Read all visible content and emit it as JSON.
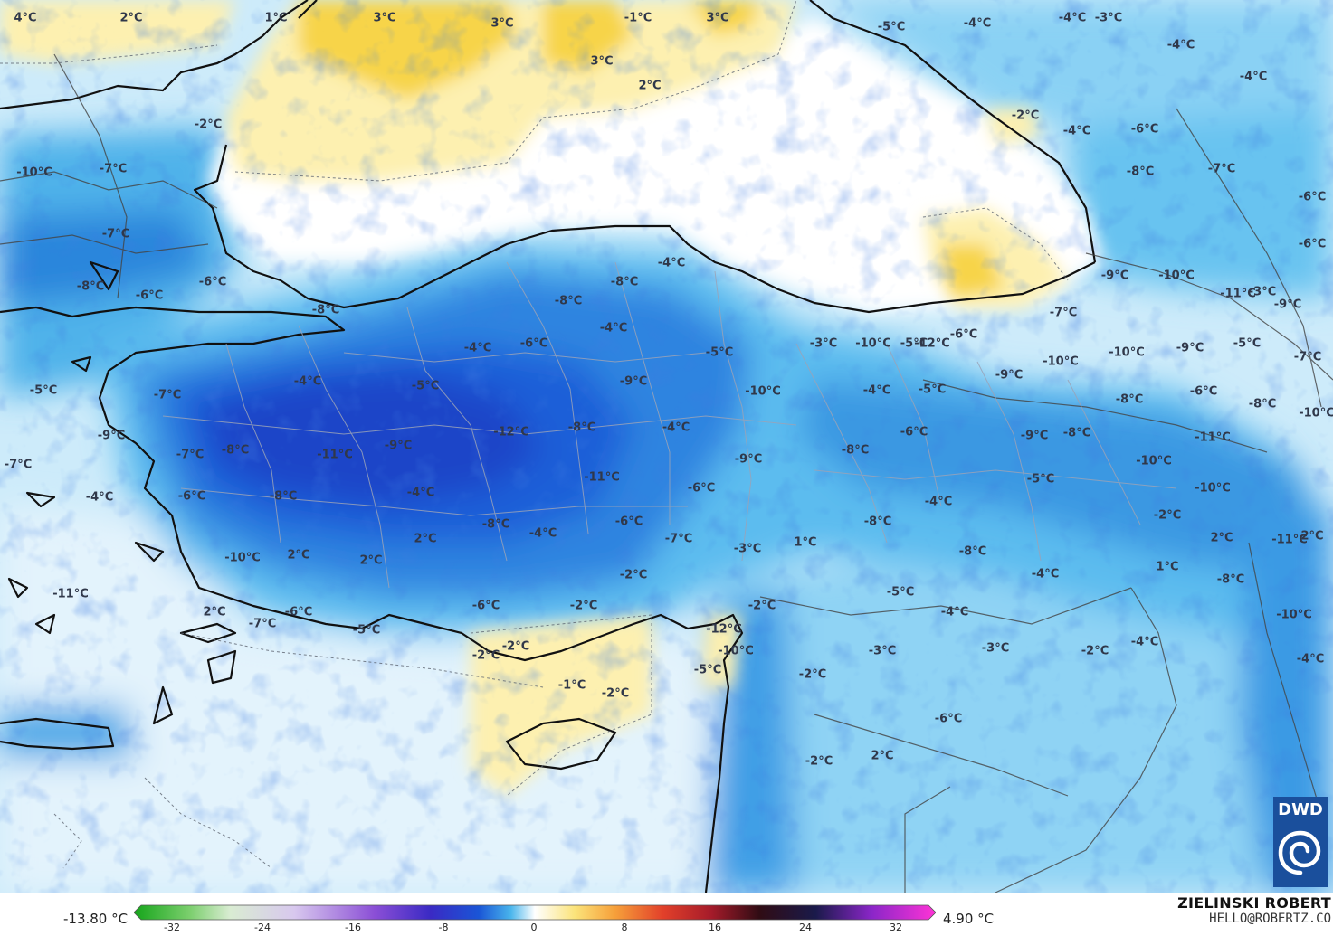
{
  "legend": {
    "min_label": "-13.80 °C",
    "max_label": "4.90 °C",
    "ticks": [
      "-32",
      "-24",
      "-16",
      "-8",
      "0",
      "8",
      "16",
      "24",
      "32"
    ]
  },
  "credit": {
    "author": "ZIELINSKI ROBERT",
    "email": "HELLO@ROBERTZ.CO"
  },
  "logo": {
    "text": "DWD",
    "icon": "dwd-swirl-icon"
  },
  "colors": {
    "warm_yellow": "#f7d44a",
    "pale_yellow": "#fdf0b0",
    "zero": "#ffffff",
    "light_blue": "#c9ebfb",
    "mid_blue": "#55b8ec",
    "deep_blue": "#1a66d6",
    "darkest_blue": "#1530b8"
  },
  "labels": [
    {
      "t": "4°C"
    },
    {
      "t": "2°C"
    },
    {
      "t": "1°C"
    },
    {
      "t": "3°C"
    },
    {
      "t": "3°C"
    },
    {
      "t": "-1°C"
    },
    {
      "t": "3°C"
    },
    {
      "t": "3°C"
    },
    {
      "t": "2°C"
    },
    {
      "t": "-5°C"
    },
    {
      "t": "-4°C"
    },
    {
      "t": "-4°C"
    },
    {
      "t": "-3°C"
    },
    {
      "t": "-4°C"
    },
    {
      "t": "-4°C"
    },
    {
      "t": "-2°C"
    },
    {
      "t": "-2°C"
    },
    {
      "t": "-4°C"
    },
    {
      "t": "-6°C"
    },
    {
      "t": "-10°C"
    },
    {
      "t": "-7°C"
    },
    {
      "t": "-7°C"
    },
    {
      "t": "-8°C"
    },
    {
      "t": "-6°C"
    },
    {
      "t": "-6°C"
    },
    {
      "t": "-6°C"
    },
    {
      "t": "-6°C"
    },
    {
      "t": "-8°C"
    },
    {
      "t": "-7°C"
    },
    {
      "t": "-8°C"
    },
    {
      "t": "-8°C"
    },
    {
      "t": "-8°C"
    },
    {
      "t": "-4°C"
    },
    {
      "t": "-7°C"
    },
    {
      "t": "-5°C"
    },
    {
      "t": "-6°C"
    },
    {
      "t": "-3°C"
    },
    {
      "t": "-9°C"
    },
    {
      "t": "-10°C"
    },
    {
      "t": "-11°C"
    },
    {
      "t": "-9°C"
    },
    {
      "t": "-5°C"
    },
    {
      "t": "-7°C"
    },
    {
      "t": "-7°C"
    },
    {
      "t": "-4°C"
    },
    {
      "t": "-5°C"
    },
    {
      "t": "-4°C"
    },
    {
      "t": "-6°C"
    },
    {
      "t": "-4°C"
    },
    {
      "t": "-5°C"
    },
    {
      "t": "-3°C"
    },
    {
      "t": "-10°C"
    },
    {
      "t": "-12°C"
    },
    {
      "t": "-9°C"
    },
    {
      "t": "-10°C"
    },
    {
      "t": "-10°C"
    },
    {
      "t": "-9°C"
    },
    {
      "t": "-6°C"
    },
    {
      "t": "-8°C"
    },
    {
      "t": "-10°C"
    },
    {
      "t": "-5°C"
    },
    {
      "t": "-9°C"
    },
    {
      "t": "-7°C"
    },
    {
      "t": "-4°C"
    },
    {
      "t": "-7°C"
    },
    {
      "t": "-8°C"
    },
    {
      "t": "-11°C"
    },
    {
      "t": "-9°C"
    },
    {
      "t": "-12°C"
    },
    {
      "t": "-8°C"
    },
    {
      "t": "-9°C"
    },
    {
      "t": "-4°C"
    },
    {
      "t": "-10°C"
    },
    {
      "t": "-8°C"
    },
    {
      "t": "-6°C"
    },
    {
      "t": "-9°C"
    },
    {
      "t": "-8°C"
    },
    {
      "t": "-8°C"
    },
    {
      "t": "-10°C"
    },
    {
      "t": "-11°C"
    },
    {
      "t": "-5°C"
    },
    {
      "t": "-10°C"
    },
    {
      "t": "-6°C"
    },
    {
      "t": "-8°C"
    },
    {
      "t": "-4°C"
    },
    {
      "t": "-8°C"
    },
    {
      "t": "-4°C"
    },
    {
      "t": "-11°C"
    },
    {
      "t": "-6°C"
    },
    {
      "t": "-6°C"
    },
    {
      "t": "-9°C"
    },
    {
      "t": "-4°C"
    },
    {
      "t": "-5°C"
    },
    {
      "t": "-4°C"
    },
    {
      "t": "-8°C"
    },
    {
      "t": "-8°C"
    },
    {
      "t": "-4°C"
    },
    {
      "t": "-2°C"
    },
    {
      "t": "2°C"
    },
    {
      "t": "1°C"
    },
    {
      "t": "-8°C"
    },
    {
      "t": "-11°C"
    },
    {
      "t": "2°C"
    },
    {
      "t": "-10°C"
    },
    {
      "t": "2°C"
    },
    {
      "t": "2°C"
    },
    {
      "t": "2°C"
    },
    {
      "t": "-7°C"
    },
    {
      "t": "1°C"
    },
    {
      "t": "-3°C"
    },
    {
      "t": "-5°C"
    },
    {
      "t": "-4°C"
    },
    {
      "t": "-3°C"
    },
    {
      "t": "-2°C"
    },
    {
      "t": "-4°C"
    },
    {
      "t": "-10°C"
    },
    {
      "t": "-4°C"
    },
    {
      "t": "-11°C"
    },
    {
      "t": "2°C"
    },
    {
      "t": "-7°C"
    },
    {
      "t": "-6°C"
    },
    {
      "t": "-5°C"
    },
    {
      "t": "-6°C"
    },
    {
      "t": "-2°C"
    },
    {
      "t": "-2°C"
    },
    {
      "t": "-12°C"
    },
    {
      "t": "-2°C"
    },
    {
      "t": "-10°C"
    },
    {
      "t": "-5°C"
    },
    {
      "t": "-2°C"
    },
    {
      "t": "-2°C"
    },
    {
      "t": "-1°C"
    },
    {
      "t": "-2°C"
    },
    {
      "t": "-3°C"
    },
    {
      "t": "-2°C"
    },
    {
      "t": "-2°C"
    },
    {
      "t": "2°C"
    },
    {
      "t": "-6°C"
    }
  ]
}
